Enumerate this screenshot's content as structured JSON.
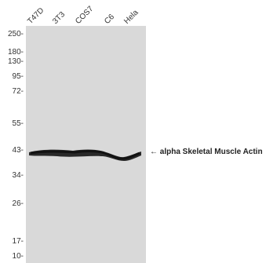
{
  "lanes": [
    "T47D",
    "3T3",
    "COS7",
    "C6",
    "Hela"
  ],
  "markers": [
    "250-",
    "180-",
    "130-",
    "95-",
    "72-",
    "55-",
    "43-",
    "34-",
    "26-",
    "17-",
    "10-"
  ],
  "annotation": "← alpha Skeletal Muscle Actin",
  "colors": {
    "gel": "#d9d9d9",
    "band": "#1a1a1a",
    "text": "#222222"
  }
}
